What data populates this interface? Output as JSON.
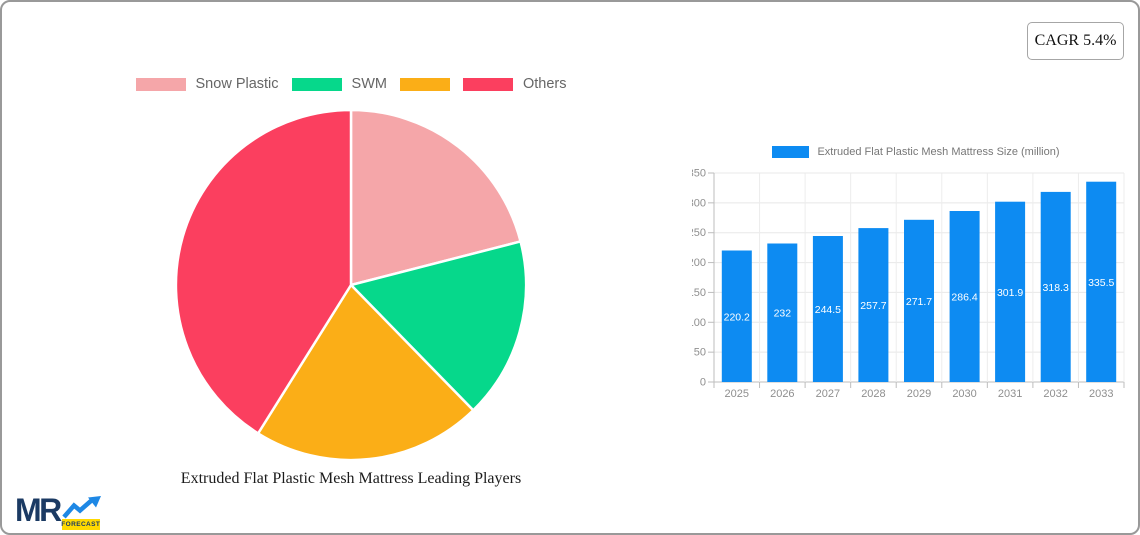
{
  "page": {
    "background": "#ffffff",
    "border_color": "#999999"
  },
  "cagr_badge": {
    "label": "CAGR 5.4%"
  },
  "logo": {
    "mr": "MR",
    "forecast": "FORECAST",
    "navy": "#1b3a63",
    "arrow_blue": "#1e88e5",
    "yellow": "#ffd900"
  },
  "chart_data": [
    {
      "type": "pie",
      "title": "Extruded Flat Plastic Mesh Mattress Leading Players",
      "legend_position": "top",
      "labels": [
        "Snow Plastic",
        "SWM",
        "",
        "Others"
      ],
      "values": [
        21,
        16.7,
        21.2,
        41.1
      ],
      "colors": [
        "#f5a6a9",
        "#06d88b",
        "#fbae17",
        "#fb3f5f"
      ],
      "slice_border_color": "#ffffff"
    },
    {
      "type": "bar",
      "legend": "Extruded Flat Plastic Mesh Mattress Size (million)",
      "legend_position": "top",
      "categories": [
        "2025",
        "2026",
        "2027",
        "2028",
        "2029",
        "2030",
        "2031",
        "2032",
        "2033"
      ],
      "values": [
        220.2,
        232,
        244.5,
        257.7,
        271.7,
        286.4,
        301.9,
        318.3,
        335.5
      ],
      "bar_color": "#0d8bf2",
      "value_label_color": "#ffffff",
      "xlabel": "",
      "ylabel": "",
      "ylim": [
        0,
        350
      ],
      "ytick_step": 50,
      "grid": true
    }
  ]
}
